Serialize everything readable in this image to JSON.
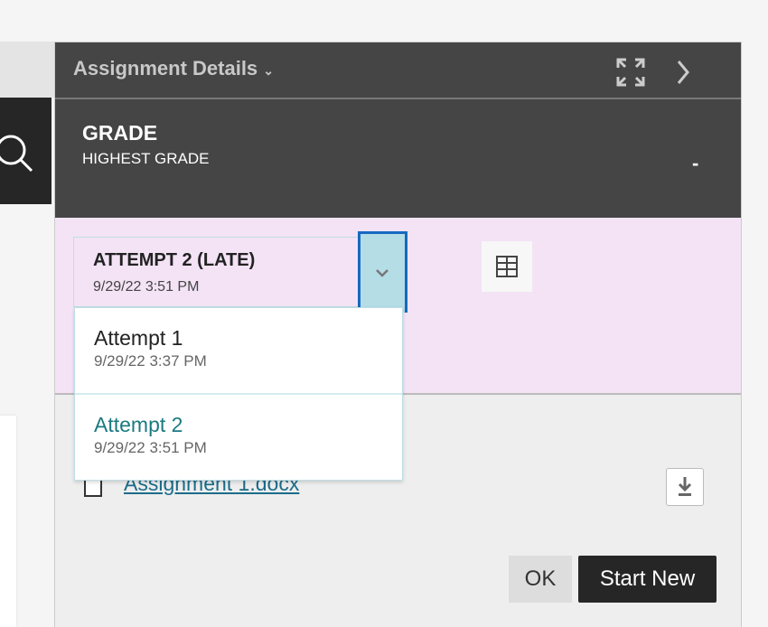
{
  "panel": {
    "title": "Assignment Details"
  },
  "grade": {
    "heading": "GRADE",
    "subheading": "HIGHEST GRADE",
    "value": "-"
  },
  "attempt_select": {
    "selected_label": "ATTEMPT 2 (LATE)",
    "selected_date": "9/29/22 3:51 PM",
    "options": [
      {
        "label": "Attempt 1",
        "date": "9/29/22 3:37 PM"
      },
      {
        "label": "Attempt 2",
        "date": "9/29/22 3:51 PM"
      }
    ]
  },
  "file": {
    "name": "Assignment 1.docx"
  },
  "buttons": {
    "ok": "OK",
    "start_new": "Start New"
  },
  "colors": {
    "header": "#454545",
    "attempt_bg": "#f3e3f5",
    "selected_option": "#1b7a80",
    "focus": "#1769c0"
  }
}
